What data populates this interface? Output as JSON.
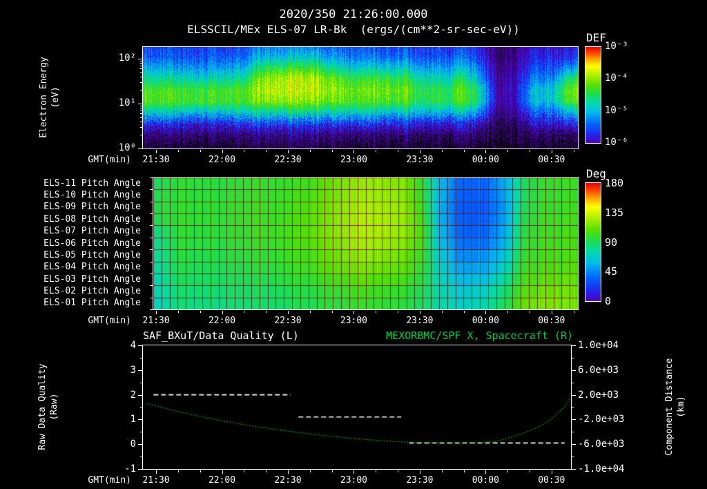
{
  "header": {
    "timestamp": "2020/350 21:26:00.000",
    "title": "ELSSCIL/MEx ELS-07 LR-Bk  (ergs/(cm**2-sr-sec-eV))"
  },
  "time_axis": {
    "label": "GMT(min)",
    "tick_labels": [
      "21:30",
      "22:00",
      "22:30",
      "23:00",
      "23:30",
      "00:00",
      "00:30"
    ],
    "tick_hours": [
      21.5,
      22.0,
      22.5,
      23.0,
      23.5,
      24.0,
      24.5
    ],
    "hour_range": [
      21.4,
      24.7
    ]
  },
  "colormap": [
    [
      0.0,
      "#5500bb"
    ],
    [
      0.08,
      "#2222ee"
    ],
    [
      0.2,
      "#0066ff"
    ],
    [
      0.32,
      "#00bbee"
    ],
    [
      0.42,
      "#00ddaa"
    ],
    [
      0.52,
      "#22dd44"
    ],
    [
      0.6,
      "#55e000"
    ],
    [
      0.7,
      "#aaee00"
    ],
    [
      0.8,
      "#ffff00"
    ],
    [
      0.88,
      "#ff9900"
    ],
    [
      0.95,
      "#ff3300"
    ],
    [
      1.0,
      "#ee0000"
    ]
  ],
  "chart_data": [
    {
      "id": "electron_energy_spectrogram",
      "type": "heatmap",
      "ylabel": "Electron Energy",
      "yunit": "(eV)",
      "y_ticks": [
        "10²",
        "10¹",
        "10⁰"
      ],
      "y_tick_log": [
        2,
        1,
        0
      ],
      "y_log_range": [
        0,
        2.26
      ],
      "value_range_log10_def": [
        -6,
        -3
      ],
      "x_hours": [
        21.47,
        21.61,
        21.74,
        21.88,
        22.02,
        22.16,
        22.29,
        22.43,
        22.56,
        22.7,
        22.84,
        22.98,
        23.11,
        23.25,
        23.39,
        23.52,
        23.66,
        23.8,
        23.93,
        24.07,
        24.21,
        24.34,
        24.48,
        24.62
      ],
      "row_log10_energy": [
        2.3,
        2.05,
        1.8,
        1.55,
        1.3,
        1.05,
        0.8,
        0.55,
        0.3,
        0.05
      ],
      "log10_def_columns": [
        [
          -5.6,
          -5.5,
          -5.1,
          -4.7,
          -4.3,
          -4.25,
          -4.9,
          -5.7,
          -6.3,
          -6.6
        ],
        [
          -5.6,
          -5.5,
          -5.15,
          -4.75,
          -4.3,
          -4.3,
          -4.9,
          -5.7,
          -6.3,
          -6.6
        ],
        [
          -5.65,
          -5.55,
          -5.2,
          -4.8,
          -4.35,
          -4.3,
          -5.0,
          -5.8,
          -6.3,
          -6.6
        ],
        [
          -5.6,
          -5.5,
          -5.2,
          -4.8,
          -4.35,
          -4.3,
          -5.0,
          -5.8,
          -6.35,
          -6.6
        ],
        [
          -5.65,
          -5.5,
          -5.15,
          -4.75,
          -4.3,
          -4.3,
          -4.95,
          -5.75,
          -6.3,
          -6.6
        ],
        [
          -5.6,
          -5.45,
          -5.1,
          -4.7,
          -4.3,
          -4.3,
          -4.9,
          -5.7,
          -6.3,
          -6.6
        ],
        [
          -5.4,
          -5.1,
          -4.6,
          -4.1,
          -3.95,
          -4.1,
          -4.8,
          -5.6,
          -6.25,
          -6.55
        ],
        [
          -5.3,
          -5.0,
          -4.4,
          -3.9,
          -3.8,
          -4.0,
          -4.75,
          -5.6,
          -6.2,
          -6.5
        ],
        [
          -5.3,
          -4.95,
          -4.35,
          -3.85,
          -3.8,
          -4.0,
          -4.7,
          -5.55,
          -6.2,
          -6.5
        ],
        [
          -5.35,
          -5.0,
          -4.4,
          -3.9,
          -3.85,
          -4.05,
          -4.75,
          -5.6,
          -6.2,
          -6.5
        ],
        [
          -5.45,
          -5.2,
          -4.7,
          -4.15,
          -4.0,
          -4.15,
          -4.8,
          -5.65,
          -6.25,
          -6.55
        ],
        [
          -5.55,
          -5.35,
          -4.9,
          -4.4,
          -4.15,
          -4.25,
          -4.85,
          -5.7,
          -6.3,
          -6.6
        ],
        [
          -5.55,
          -5.35,
          -4.85,
          -4.35,
          -4.1,
          -4.25,
          -4.85,
          -5.7,
          -6.3,
          -6.6
        ],
        [
          -5.55,
          -5.4,
          -4.9,
          -4.35,
          -4.1,
          -4.25,
          -4.9,
          -5.7,
          -6.3,
          -6.6
        ],
        [
          -5.6,
          -5.4,
          -4.95,
          -4.45,
          -4.2,
          -4.3,
          -4.9,
          -5.75,
          -6.3,
          -6.6
        ],
        [
          -5.65,
          -5.5,
          -5.1,
          -4.7,
          -4.4,
          -4.45,
          -5.0,
          -5.8,
          -6.35,
          -6.6
        ],
        [
          -5.7,
          -5.55,
          -5.2,
          -4.85,
          -4.5,
          -4.5,
          -5.05,
          -5.85,
          -6.4,
          -6.65
        ],
        [
          -5.6,
          -5.45,
          -5.0,
          -4.55,
          -4.25,
          -4.3,
          -4.95,
          -5.75,
          -6.3,
          -6.6
        ],
        [
          -5.7,
          -5.6,
          -5.3,
          -5.0,
          -4.6,
          -4.6,
          -5.2,
          -5.9,
          -6.4,
          -6.65
        ],
        [
          -6.3,
          -6.3,
          -6.2,
          -6.1,
          -6.0,
          -6.0,
          -6.2,
          -6.4,
          -6.6,
          -6.7
        ],
        [
          -6.35,
          -6.3,
          -6.2,
          -6.1,
          -6.05,
          -6.05,
          -6.2,
          -6.45,
          -6.6,
          -6.7
        ],
        [
          -5.9,
          -5.8,
          -5.6,
          -5.35,
          -5.05,
          -5.05,
          -5.5,
          -5.95,
          -6.45,
          -6.65
        ],
        [
          -5.9,
          -5.8,
          -5.55,
          -5.3,
          -4.95,
          -5.0,
          -5.45,
          -5.9,
          -6.4,
          -6.65
        ],
        [
          -5.8,
          -5.65,
          -5.2,
          -4.45,
          -4.1,
          -4.2,
          -5.0,
          -5.7,
          -6.35,
          -6.6
        ]
      ],
      "colorbar": {
        "title": "DEF",
        "labels": [
          "10⁻³",
          "10⁻⁴",
          "10⁻⁵",
          "10⁻⁶"
        ],
        "values": [
          -3,
          -4,
          -5,
          -6
        ]
      }
    },
    {
      "id": "pitch_angle_panels",
      "type": "heatmap",
      "row_labels": [
        "ELS-11 Pitch Angle",
        "ELS-10 Pitch Angle",
        "ELS-09 Pitch Angle",
        "ELS-08 Pitch Angle",
        "ELS-07 Pitch Angle",
        "ELS-06 Pitch Angle",
        "ELS-05 Pitch Angle",
        "ELS-04 Pitch Angle",
        "ELS-03 Pitch Angle",
        "ELS-02 Pitch Angle",
        "ELS-01 Pitch Angle"
      ],
      "x_hours": [
        21.46,
        21.59,
        21.72,
        21.84,
        21.97,
        22.1,
        22.22,
        22.35,
        22.48,
        22.6,
        22.73,
        22.86,
        22.99,
        23.11,
        23.24,
        23.37,
        23.49,
        23.62,
        23.75,
        23.87,
        24.0,
        24.13,
        24.25,
        24.38,
        24.51,
        24.64
      ],
      "value_range_deg": [
        0,
        180
      ],
      "deg_rows": [
        [
          90,
          95,
          96,
          95,
          96,
          97,
          98,
          99,
          100,
          103,
          108,
          115,
          120,
          122,
          120,
          115,
          95,
          60,
          40,
          35,
          38,
          55,
          85,
          95,
          98,
          100
        ],
        [
          92,
          95,
          96,
          96,
          97,
          98,
          99,
          100,
          102,
          105,
          110,
          117,
          122,
          124,
          122,
          116,
          96,
          58,
          38,
          33,
          36,
          52,
          84,
          95,
          98,
          100
        ],
        [
          93,
          96,
          97,
          97,
          98,
          99,
          100,
          101,
          103,
          107,
          112,
          119,
          124,
          126,
          124,
          118,
          98,
          57,
          37,
          32,
          35,
          50,
          86,
          96,
          99,
          101
        ],
        [
          92,
          96,
          97,
          97,
          98,
          99,
          100,
          102,
          104,
          108,
          113,
          120,
          125,
          127,
          125,
          119,
          100,
          58,
          38,
          33,
          36,
          52,
          88,
          97,
          100,
          102
        ],
        [
          85,
          95,
          96,
          96,
          97,
          98,
          100,
          102,
          104,
          108,
          114,
          120,
          125,
          127,
          125,
          118,
          102,
          60,
          40,
          35,
          38,
          55,
          90,
          98,
          101,
          103
        ],
        [
          82,
          94,
          95,
          95,
          96,
          97,
          99,
          101,
          103,
          107,
          112,
          118,
          123,
          125,
          122,
          115,
          100,
          62,
          44,
          39,
          42,
          58,
          92,
          99,
          102,
          104
        ],
        [
          80,
          92,
          93,
          93,
          94,
          95,
          97,
          99,
          101,
          104,
          109,
          114,
          118,
          120,
          117,
          110,
          98,
          66,
          50,
          46,
          50,
          64,
          94,
          100,
          103,
          105
        ],
        [
          78,
          90,
          91,
          91,
          92,
          93,
          95,
          97,
          99,
          102,
          106,
          110,
          113,
          114,
          112,
          106,
          96,
          70,
          56,
          52,
          56,
          70,
          96,
          102,
          105,
          106
        ],
        [
          76,
          88,
          89,
          89,
          90,
          91,
          92,
          94,
          96,
          98,
          101,
          104,
          107,
          108,
          106,
          101,
          93,
          72,
          62,
          60,
          64,
          78,
          100,
          106,
          109,
          110
        ],
        [
          74,
          85,
          86,
          86,
          87,
          88,
          89,
          90,
          92,
          94,
          96,
          99,
          101,
          102,
          100,
          96,
          90,
          74,
          68,
          67,
          72,
          85,
          104,
          110,
          113,
          113
        ],
        [
          72,
          83,
          84,
          84,
          85,
          86,
          87,
          88,
          90,
          92,
          94,
          96,
          98,
          99,
          97,
          94,
          88,
          75,
          70,
          70,
          76,
          90,
          108,
          114,
          116,
          115
        ]
      ],
      "colorbar": {
        "title": "Deg",
        "labels": [
          "180",
          "135",
          "90",
          "45",
          "0"
        ],
        "values": [
          180,
          135,
          90,
          45,
          0
        ]
      }
    },
    {
      "id": "quality_and_distance",
      "type": "line",
      "title_left": "SAF_BXuT/Data Quality (L)",
      "title_right": "MEXORBMC/SPF X, Spacecraft (R)",
      "title_right_color": "#00cc44",
      "left_axis": {
        "label": "Raw Data Quality",
        "unit": "(Raw)",
        "ticks": [
          "4",
          "3",
          "2",
          "1",
          "0",
          "-1"
        ],
        "tick_values": [
          4,
          3,
          2,
          1,
          0,
          -1
        ],
        "range": [
          -1,
          4
        ]
      },
      "right_axis": {
        "label": "Component Distance",
        "unit": "(km)",
        "ticks": [
          "1.0e+04",
          "6.0e+03",
          "2.0e+03",
          "-2.0e+03",
          "-6.0e+03",
          "-1.0e+04"
        ],
        "tick_values": [
          10000,
          6000,
          2000,
          -2000,
          -6000,
          -10000
        ],
        "range": [
          -10000,
          10000
        ]
      },
      "series": [
        {
          "name": "Data Quality",
          "axis": "left",
          "color": "#ffffff",
          "style": "dashed",
          "segments": [
            {
              "t0": 21.48,
              "t1": 22.52,
              "value": 2.0
            },
            {
              "t0": 22.58,
              "t1": 23.36,
              "value": 1.1
            },
            {
              "t0": 23.42,
              "t1": 24.6,
              "value": 0.05
            }
          ]
        },
        {
          "name": "Spacecraft X",
          "axis": "right",
          "color": "#00b41e",
          "style": "dotted",
          "x_hours": [
            21.43,
            21.6,
            21.8,
            22.0,
            22.2,
            22.4,
            22.6,
            22.8,
            23.0,
            23.2,
            23.4,
            23.6,
            23.8,
            23.95,
            24.1,
            24.2,
            24.3,
            24.4,
            24.48,
            24.55,
            24.6,
            24.64,
            24.648
          ],
          "km": [
            600,
            -350,
            -1350,
            -2200,
            -2950,
            -3600,
            -4150,
            -4650,
            -5080,
            -5420,
            -5660,
            -5810,
            -5840,
            -5750,
            -5450,
            -4800,
            -4100,
            -3200,
            -2200,
            -1000,
            100,
            1400,
            2300
          ]
        }
      ]
    }
  ]
}
